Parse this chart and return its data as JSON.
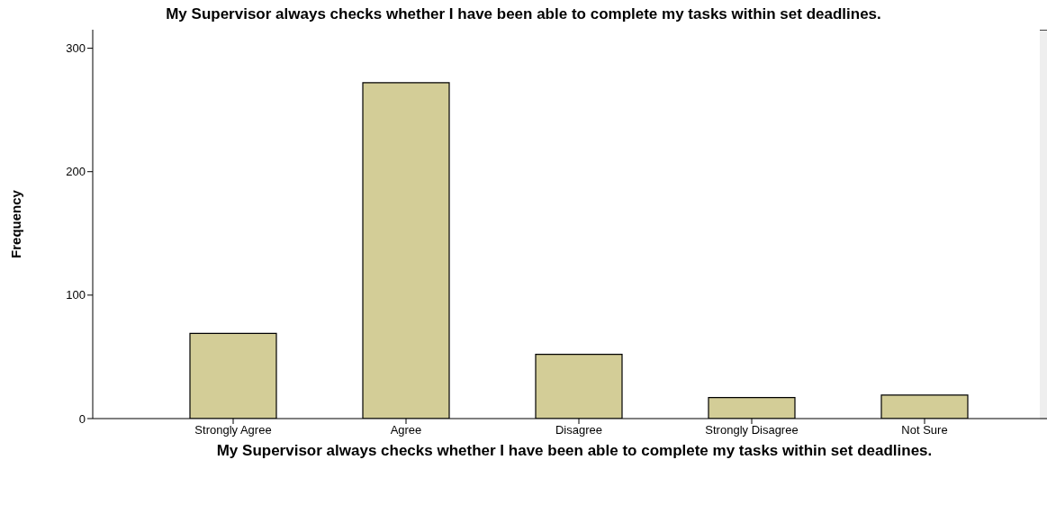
{
  "chart_data": {
    "type": "bar",
    "title": "My Supervisor always checks whether I have been able to complete my tasks within set deadlines.",
    "xlabel": "My Supervisor always checks whether I have been able to complete my tasks within set deadlines.",
    "ylabel": "Frequency",
    "categories": [
      "Strongly Agree",
      "Agree",
      "Disagree",
      "Strongly Disagree",
      "Not Sure"
    ],
    "values": [
      69,
      272,
      52,
      17,
      19
    ],
    "color": "#d3cd97",
    "ylim": [
      0,
      315
    ],
    "yticks": [
      0,
      100,
      200,
      300
    ],
    "grid": false,
    "legend": false
  }
}
